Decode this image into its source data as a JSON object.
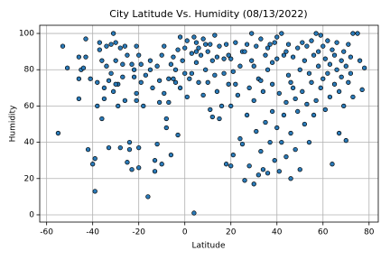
{
  "chart_data": {
    "type": "scatter",
    "title": "City Latitude Vs. Humidity (08/13/2022)",
    "x_label": "Latitude",
    "y_label": "Humidity",
    "x": [
      -55,
      -53,
      -51,
      -46,
      -46,
      -46,
      -45,
      -44,
      -43,
      -43,
      -42,
      -41,
      -40,
      -39,
      -39,
      -38,
      -38,
      -37,
      -37,
      -36,
      -36,
      -35,
      -35,
      -34,
      -34,
      -33,
      -33,
      -32,
      -32,
      -31,
      -31,
      -30,
      -30,
      -29,
      -29,
      -28,
      -28,
      -27,
      -27,
      -26,
      -26,
      -25,
      -24,
      -24,
      -23,
      -23,
      -22,
      -22,
      -21,
      -21,
      -21,
      -20,
      -20,
      -20,
      -19,
      -19,
      -18,
      -17,
      -16,
      -15,
      -14,
      -13,
      -13,
      -12,
      -12,
      -11,
      -11,
      -10,
      -10,
      -9,
      -9,
      -8,
      -8,
      -7,
      -7,
      -6,
      -6,
      -5,
      -4,
      -4,
      -3,
      -3,
      -2,
      -2,
      -1,
      0,
      0,
      1,
      1,
      2,
      3,
      3,
      4,
      4,
      5,
      5,
      6,
      6,
      7,
      8,
      8,
      9,
      10,
      10,
      11,
      11,
      12,
      12,
      13,
      13,
      14,
      15,
      15,
      16,
      17,
      17,
      18,
      18,
      19,
      19,
      20,
      20,
      21,
      21,
      22,
      23,
      24,
      24,
      25,
      25,
      26,
      27,
      27,
      28,
      28,
      29,
      29,
      30,
      30,
      31,
      31,
      32,
      32,
      33,
      33,
      34,
      34,
      35,
      35,
      36,
      36,
      37,
      37,
      38,
      38,
      39,
      39,
      40,
      40,
      41,
      41,
      42,
      42,
      43,
      43,
      44,
      44,
      45,
      45,
      46,
      46,
      47,
      47,
      48,
      48,
      49,
      49,
      50,
      50,
      51,
      51,
      52,
      52,
      53,
      53,
      54,
      54,
      55,
      55,
      56,
      56,
      57,
      57,
      58,
      58,
      59,
      59,
      60,
      60,
      61,
      61,
      62,
      62,
      63,
      63,
      64,
      64,
      65,
      65,
      66,
      66,
      67,
      67,
      68,
      68,
      69,
      69,
      70,
      70,
      71,
      71,
      72,
      72,
      73,
      73,
      75,
      76,
      77,
      78,
      20,
      22,
      26,
      30,
      33,
      36,
      38,
      40,
      44,
      46,
      14,
      9,
      5,
      -15,
      -25,
      -30,
      -5
    ],
    "values": [
      45,
      93,
      81,
      87,
      64,
      75,
      80,
      81,
      97,
      87,
      36,
      75,
      28,
      13,
      31,
      60,
      73,
      95,
      91,
      53,
      85,
      70,
      64,
      93,
      82,
      37,
      74,
      94,
      78,
      100,
      68,
      95,
      85,
      72,
      60,
      37,
      92,
      83,
      76,
      93,
      63,
      29,
      40,
      36,
      25,
      83,
      80,
      76,
      93,
      67,
      63,
      37,
      26,
      88,
      73,
      83,
      60,
      77,
      10,
      85,
      70,
      24,
      30,
      39,
      82,
      62,
      74,
      28,
      88,
      93,
      67,
      48,
      53,
      75,
      62,
      83,
      33,
      87,
      73,
      80,
      44,
      91,
      98,
      70,
      85,
      78,
      92,
      96,
      65,
      75,
      89,
      78,
      98,
      1,
      95,
      84,
      92,
      73,
      88,
      97,
      66,
      80,
      90,
      73,
      94,
      58,
      85,
      54,
      99,
      77,
      68,
      93,
      53,
      60,
      86,
      78,
      94,
      28,
      72,
      88,
      60,
      27,
      79,
      33,
      95,
      66,
      82,
      42,
      39,
      90,
      19,
      94,
      55,
      27,
      70,
      100,
      85,
      17,
      63,
      46,
      93,
      22,
      75,
      35,
      97,
      68,
      25,
      88,
      51,
      23,
      80,
      94,
      40,
      57,
      72,
      95,
      30,
      86,
      48,
      67,
      24,
      100,
      40,
      88,
      55,
      62,
      32,
      94,
      77,
      45,
      20,
      87,
      70,
      64,
      36,
      92,
      57,
      80,
      25,
      95,
      68,
      50,
      85,
      93,
      61,
      40,
      78,
      96,
      73,
      55,
      88,
      100,
      63,
      82,
      90,
      70,
      99,
      75,
      93,
      86,
      58,
      96,
      78,
      83,
      65,
      91,
      28,
      72,
      88,
      80,
      95,
      68,
      45,
      85,
      76,
      90,
      60,
      82,
      41,
      94,
      73,
      78,
      87,
      100,
      65,
      100,
      85,
      69,
      81,
      86,
      72,
      90,
      82,
      74,
      92,
      84,
      98,
      90,
      73,
      87,
      94,
      90,
      80,
      88,
      72,
      75
    ],
    "color": "#2a7ab8",
    "xlim": [
      -63,
      84
    ],
    "ylim": [
      -4,
      104.5
    ],
    "xticks": [
      -60,
      -40,
      -20,
      0,
      20,
      40,
      60,
      80
    ],
    "yticks": [
      0,
      20,
      40,
      60,
      80,
      100
    ],
    "grid": true
  }
}
